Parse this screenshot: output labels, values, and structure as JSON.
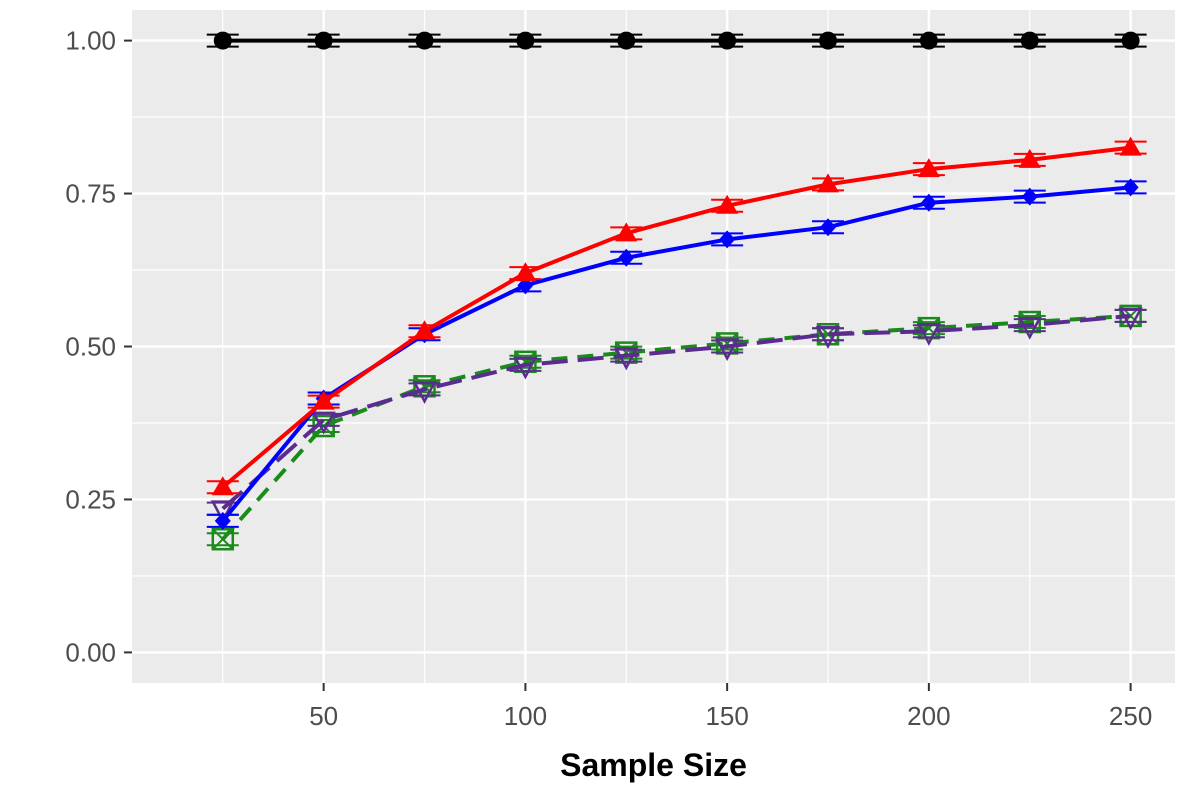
{
  "chart_data": {
    "type": "line",
    "title": "",
    "xlabel": "Sample Size",
    "ylabel": "",
    "x": [
      25,
      50,
      75,
      100,
      125,
      150,
      175,
      200,
      225,
      250
    ],
    "xlim": [
      2.5,
      261
    ],
    "ylim": [
      -0.05,
      1.05
    ],
    "x_ticks": [
      50,
      100,
      150,
      200,
      250
    ],
    "x_tick_labels": [
      "50",
      "100",
      "150",
      "200",
      "250"
    ],
    "y_ticks": [
      0,
      0.25,
      0.5,
      0.75,
      1.0
    ],
    "y_tick_labels": [
      "0.00",
      "0.25",
      "0.50",
      "0.75",
      "1.00"
    ],
    "grid": true,
    "legend": "none",
    "panel_background": "#ebebeb",
    "series": [
      {
        "color": "#000000",
        "marker": "filled-circle",
        "linestyle": "solid",
        "values": [
          1.0,
          1.0,
          1.0,
          1.0,
          1.0,
          1.0,
          1.0,
          1.0,
          1.0,
          1.0
        ]
      },
      {
        "color": "#ff0000",
        "marker": "filled-triangle",
        "linestyle": "solid",
        "values": [
          0.27,
          0.41,
          0.525,
          0.62,
          0.685,
          0.73,
          0.765,
          0.79,
          0.805,
          0.825
        ]
      },
      {
        "color": "#0000ff",
        "marker": "filled-diamond",
        "linestyle": "solid",
        "values": [
          0.215,
          0.415,
          0.52,
          0.6,
          0.645,
          0.675,
          0.695,
          0.735,
          0.745,
          0.76
        ]
      },
      {
        "color": "#5b2c8f",
        "marker": "open-triangle-down",
        "linestyle": "longdash",
        "values": [
          0.235,
          0.38,
          0.43,
          0.47,
          0.485,
          0.5,
          0.52,
          0.525,
          0.535,
          0.55
        ]
      },
      {
        "color": "#1a8a1a",
        "marker": "open-square-cross",
        "linestyle": "dashed",
        "values": [
          0.185,
          0.37,
          0.435,
          0.475,
          0.49,
          0.505,
          0.52,
          0.53,
          0.54,
          0.55
        ]
      }
    ]
  }
}
